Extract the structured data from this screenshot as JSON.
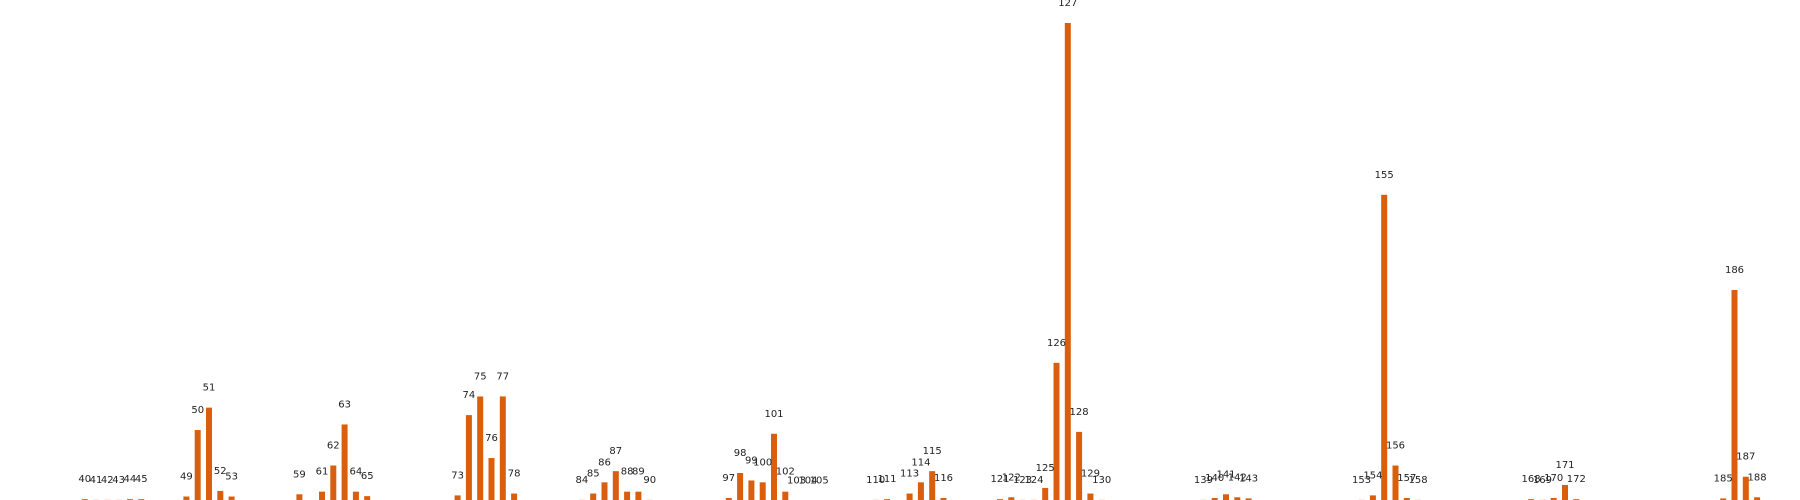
{
  "chart_data": {
    "type": "bar",
    "title": "",
    "xlabel": "",
    "ylabel": "",
    "ylim": [
      0,
      128
    ],
    "grid": false,
    "bar_color": "#d95f0e",
    "categories": [
      "40",
      "41",
      "42",
      "43",
      "44",
      "45",
      "49",
      "50",
      "51",
      "52",
      "53",
      "59",
      "61",
      "62",
      "63",
      "64",
      "65",
      "73",
      "74",
      "75",
      "76",
      "77",
      "78",
      "84",
      "85",
      "86",
      "87",
      "88",
      "89",
      "90",
      "97",
      "98",
      "99",
      "100",
      "101",
      "102",
      "103",
      "104",
      "105",
      "110",
      "111",
      "113",
      "114",
      "115",
      "116",
      "121",
      "122",
      "123",
      "124",
      "125",
      "126",
      "127",
      "128",
      "129",
      "130",
      "139",
      "140",
      "141",
      "142",
      "143",
      "153",
      "154",
      "155",
      "156",
      "157",
      "158",
      "168",
      "169",
      "170",
      "171",
      "172",
      "185",
      "186",
      "187",
      "188"
    ],
    "values": [
      0.5,
      0.3,
      0.3,
      0.3,
      0.5,
      0.5,
      1.2,
      19,
      25,
      2.7,
      1.2,
      1.8,
      2.5,
      9.5,
      20.5,
      2.5,
      1.3,
      1.5,
      23,
      28,
      11.5,
      28,
      2,
      0.3,
      2,
      5,
      8,
      2.5,
      2.5,
      0.3,
      0.8,
      7.5,
      5.5,
      5,
      18,
      2.5,
      0.2,
      0.2,
      0.2,
      0.3,
      0.5,
      2,
      5,
      8,
      0.8,
      0.5,
      1,
      0.3,
      0.3,
      3.5,
      37,
      128,
      18.5,
      2,
      0.3,
      0.3,
      0.8,
      1.8,
      1,
      0.7,
      0.3,
      1.5,
      82,
      9.5,
      0.8,
      0.3,
      0.5,
      0.3,
      0.8,
      4.3,
      0.5,
      0.7,
      56.5,
      6.5,
      1
    ]
  }
}
